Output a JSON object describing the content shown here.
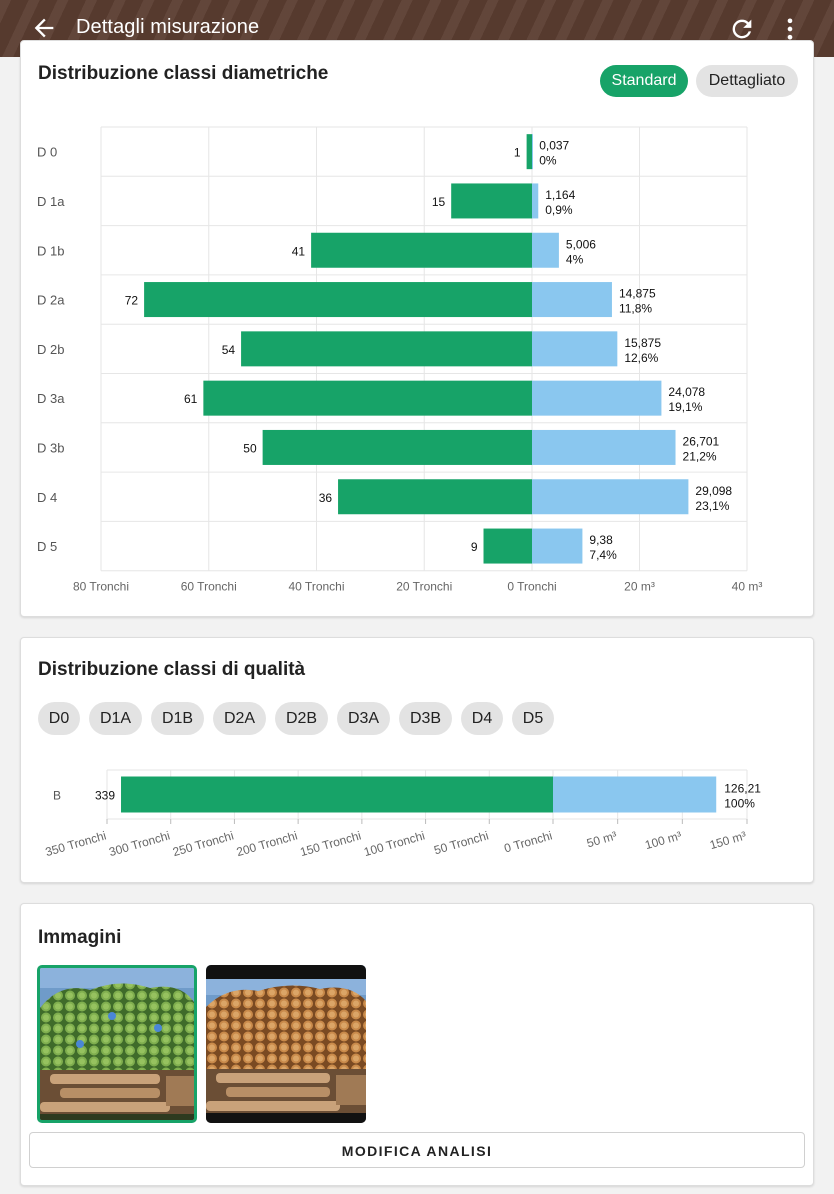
{
  "appbar": {
    "title": "Dettagli misurazione",
    "back_icon": "arrow-back-icon",
    "refresh_icon": "refresh-icon",
    "more_icon": "more-vert-icon",
    "color": "#5a3c30"
  },
  "diameter_card": {
    "title": "Distribuzione classi diametriche",
    "toggle": {
      "standard_label": "Standard",
      "detailed_label": "Dettagliato",
      "selected": "Standard"
    }
  },
  "quality_card": {
    "title": "Distribuzione classi di qualità",
    "chips": [
      "D0",
      "D1A",
      "D1B",
      "D2A",
      "D2B",
      "D3A",
      "D3B",
      "D4",
      "D5"
    ]
  },
  "images_card": {
    "title": "Immagini",
    "images": [
      "log-pile-annotated",
      "log-pile-original"
    ],
    "selected_index": 0,
    "modify_label": "MODIFICA ANALISI"
  },
  "colors": {
    "count_bar": "#17a368",
    "volume_bar": "#8ac7ef",
    "accent": "#17a368"
  },
  "chart_data": [
    {
      "type": "bar",
      "orientation": "horizontal-diverging",
      "categories": [
        "D 0",
        "D 1a",
        "D 1b",
        "D 2a",
        "D 2b",
        "D 3a",
        "D 3b",
        "D 4",
        "D 5"
      ],
      "series": [
        {
          "values": [
            1,
            15,
            41,
            72,
            54,
            61,
            50,
            36,
            9
          ]
        },
        {
          "values": [
            0.037,
            1.164,
            5.006,
            14.875,
            15.875,
            24.078,
            26.701,
            29.098,
            9.38
          ]
        }
      ],
      "volume_labels": [
        "0,037",
        "1,164",
        "5,006",
        "14,875",
        "15,875",
        "24,078",
        "26,701",
        "29,098",
        "9,38"
      ],
      "percent_labels": [
        "0%",
        "0,9%",
        "4%",
        "11,8%",
        "12,6%",
        "19,1%",
        "21,2%",
        "23,1%",
        "7,4%"
      ],
      "left_ticks": [
        "80 Tronchi",
        "60 Tronchi",
        "40 Tronchi",
        "20 Tronchi",
        "0 Tronchi"
      ],
      "right_ticks": [
        "20 m³",
        "40 m³"
      ],
      "left_range": [
        0,
        80
      ],
      "right_range": [
        0,
        40
      ],
      "grid": true
    },
    {
      "type": "bar",
      "orientation": "horizontal-diverging",
      "categories": [
        "B"
      ],
      "series": [
        {
          "values": [
            339
          ]
        },
        {
          "values": [
            126.21
          ]
        }
      ],
      "volume_labels": [
        "126,21"
      ],
      "percent_labels": [
        "100%"
      ],
      "left_ticks": [
        "350 Tronchi",
        "300 Tronchi",
        "250 Tronchi",
        "200 Tronchi",
        "150 Tronchi",
        "100 Tronchi",
        "50 Tronchi",
        "0 Tronchi"
      ],
      "right_ticks": [
        "50 m³",
        "100 m³",
        "150 m³"
      ],
      "left_range": [
        0,
        350
      ],
      "right_range": [
        0,
        150
      ],
      "grid": true
    }
  ]
}
